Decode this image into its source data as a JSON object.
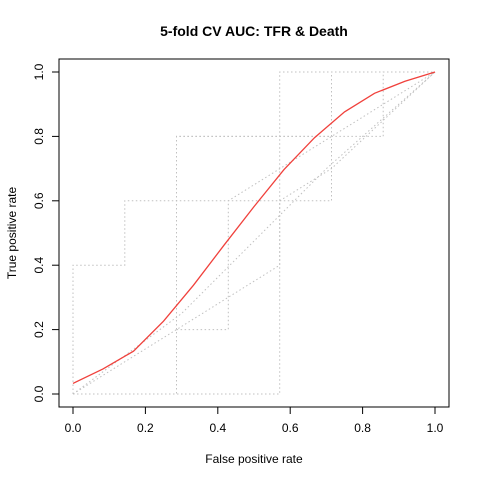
{
  "chart_data": {
    "type": "line",
    "title": "5-fold CV AUC: TFR & Death",
    "xlabel": "False positive rate",
    "ylabel": "True positive rate",
    "xlim": [
      0,
      1
    ],
    "ylim": [
      0,
      1
    ],
    "x_ticks": [
      "0.0",
      "0.2",
      "0.4",
      "0.6",
      "0.8",
      "1.0"
    ],
    "y_ticks": [
      "0.0",
      "0.2",
      "0.4",
      "0.6",
      "0.8",
      "1.0"
    ],
    "grid": false,
    "legend": "none",
    "colors": {
      "average": "#f0413c",
      "folds": "#c0c0c0"
    },
    "series": [
      {
        "style": "dotted",
        "x": [
          0,
          0,
          0.286,
          0.286,
          0.429,
          0.429,
          1
        ],
        "y": [
          0,
          0,
          0,
          0.2,
          0.2,
          0.6,
          1
        ]
      },
      {
        "style": "dotted",
        "x": [
          0,
          0,
          0.143,
          0.143,
          0.286,
          0.286,
          0.571,
          0.571,
          0.857,
          0.857,
          1
        ],
        "y": [
          0,
          0.4,
          0.4,
          0.6,
          0.6,
          0.8,
          0.8,
          1,
          1,
          1,
          1
        ]
      },
      {
        "style": "dotted",
        "x": [
          0,
          0,
          0.286,
          0.286,
          0.571,
          0.571,
          0.714,
          0.714,
          1
        ],
        "y": [
          0,
          0,
          0,
          0.6,
          0.6,
          0.8,
          0.8,
          1,
          1
        ]
      },
      {
        "style": "dotted",
        "x": [
          0,
          0,
          0.286,
          0.286,
          0.429,
          0.429,
          0.571,
          0.571,
          0.857,
          0.857,
          1
        ],
        "y": [
          0,
          0,
          0,
          0.8,
          0.8,
          0.8,
          0.8,
          0.8,
          0.8,
          1,
          1
        ]
      },
      {
        "style": "dotted",
        "x": [
          0,
          0,
          0.571,
          0.571,
          0.714,
          0.714,
          0.857,
          1
        ],
        "y": [
          0,
          0,
          0,
          0.6,
          0.6,
          1,
          1,
          1
        ]
      },
      {
        "style": "dotted",
        "x": [
          0,
          0.286,
          0.571,
          0.571,
          0.714,
          1
        ],
        "y": [
          0,
          0.2,
          0.4,
          0.6,
          0.7,
          1
        ]
      },
      {
        "style": "dotted",
        "x": [
          0,
          0.3,
          0.7,
          1
        ],
        "y": [
          0,
          0.25,
          0.7,
          1
        ]
      },
      {
        "style": "solid",
        "x": [
          0,
          0.083,
          0.167,
          0.25,
          0.333,
          0.417,
          0.5,
          0.583,
          0.667,
          0.75,
          0.833,
          0.917,
          1
        ],
        "y": [
          0.033,
          0.078,
          0.133,
          0.226,
          0.338,
          0.462,
          0.582,
          0.697,
          0.796,
          0.876,
          0.934,
          0.971,
          1
        ]
      }
    ]
  }
}
